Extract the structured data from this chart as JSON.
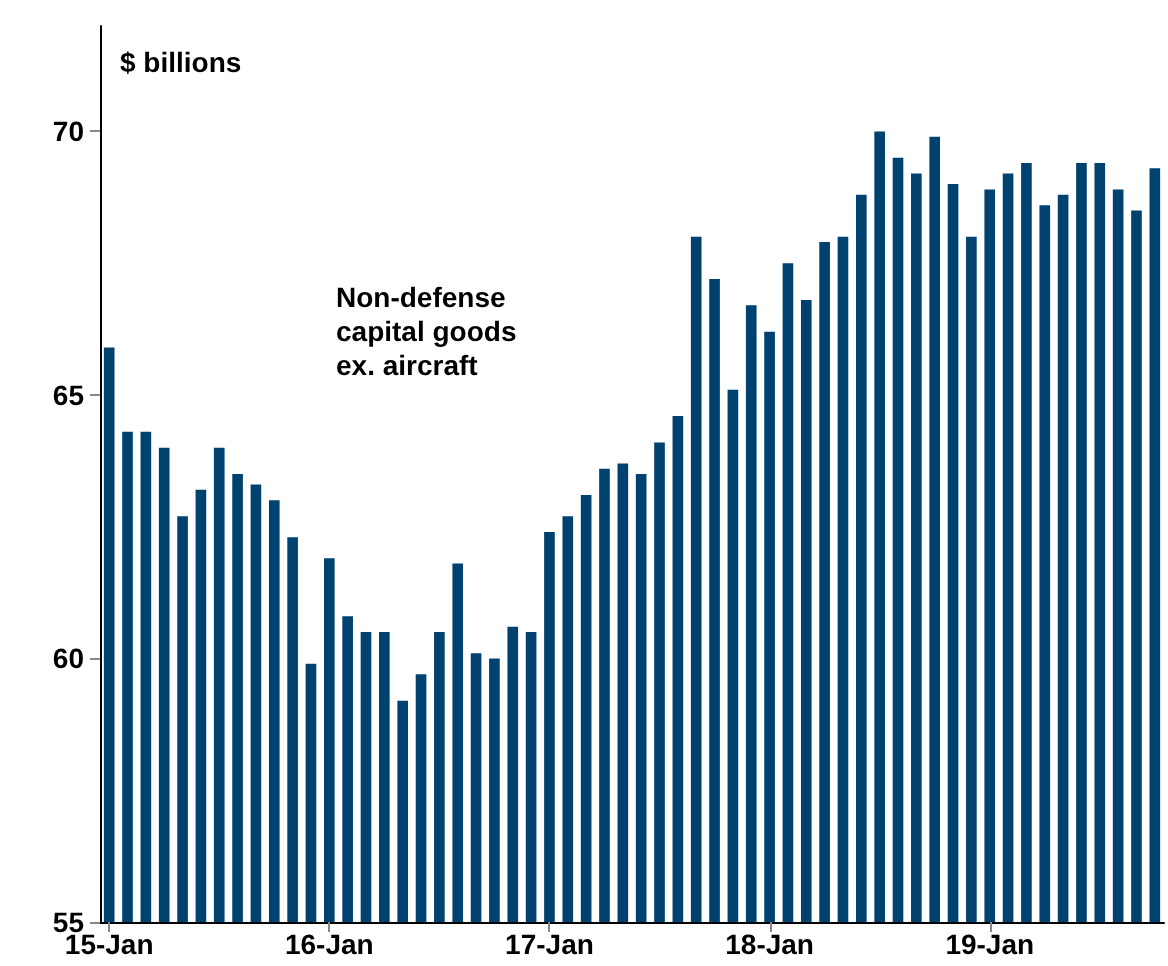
{
  "chart_data": {
    "type": "bar",
    "ylabel": "$ billions",
    "annotations": [
      "Non-defense\ncapital goods\nex. aircraft"
    ],
    "categories": [
      "15-Jan",
      null,
      null,
      null,
      null,
      null,
      null,
      null,
      null,
      null,
      null,
      null,
      "16-Jan",
      null,
      null,
      null,
      null,
      null,
      null,
      null,
      null,
      null,
      null,
      null,
      "17-Jan",
      null,
      null,
      null,
      null,
      null,
      null,
      null,
      null,
      null,
      null,
      null,
      "18-Jan",
      null,
      null,
      null,
      null,
      null,
      null,
      null,
      null,
      null,
      null,
      null,
      "19-Jan",
      null,
      null,
      null,
      null,
      null,
      null,
      null,
      null,
      null
    ],
    "values": [
      65.9,
      64.3,
      64.3,
      64.0,
      62.7,
      63.2,
      64.0,
      63.5,
      63.3,
      63.0,
      62.3,
      59.9,
      61.9,
      60.8,
      60.5,
      60.5,
      59.2,
      59.7,
      60.5,
      61.8,
      60.1,
      60.0,
      60.6,
      60.5,
      62.4,
      62.7,
      63.1,
      63.6,
      63.7,
      63.5,
      64.1,
      64.6,
      68.0,
      67.2,
      65.1,
      66.7,
      66.2,
      67.5,
      66.8,
      67.9,
      68.0,
      68.8,
      70.0,
      69.5,
      69.2,
      69.9,
      69.0,
      68.0,
      68.9,
      69.2,
      69.4,
      68.6,
      68.8,
      69.4,
      69.4,
      68.9,
      68.5,
      69.3
    ],
    "color": "#00426f",
    "ylim": [
      55,
      72
    ],
    "yticks": [
      55,
      60,
      65,
      70
    ],
    "grid": false
  }
}
